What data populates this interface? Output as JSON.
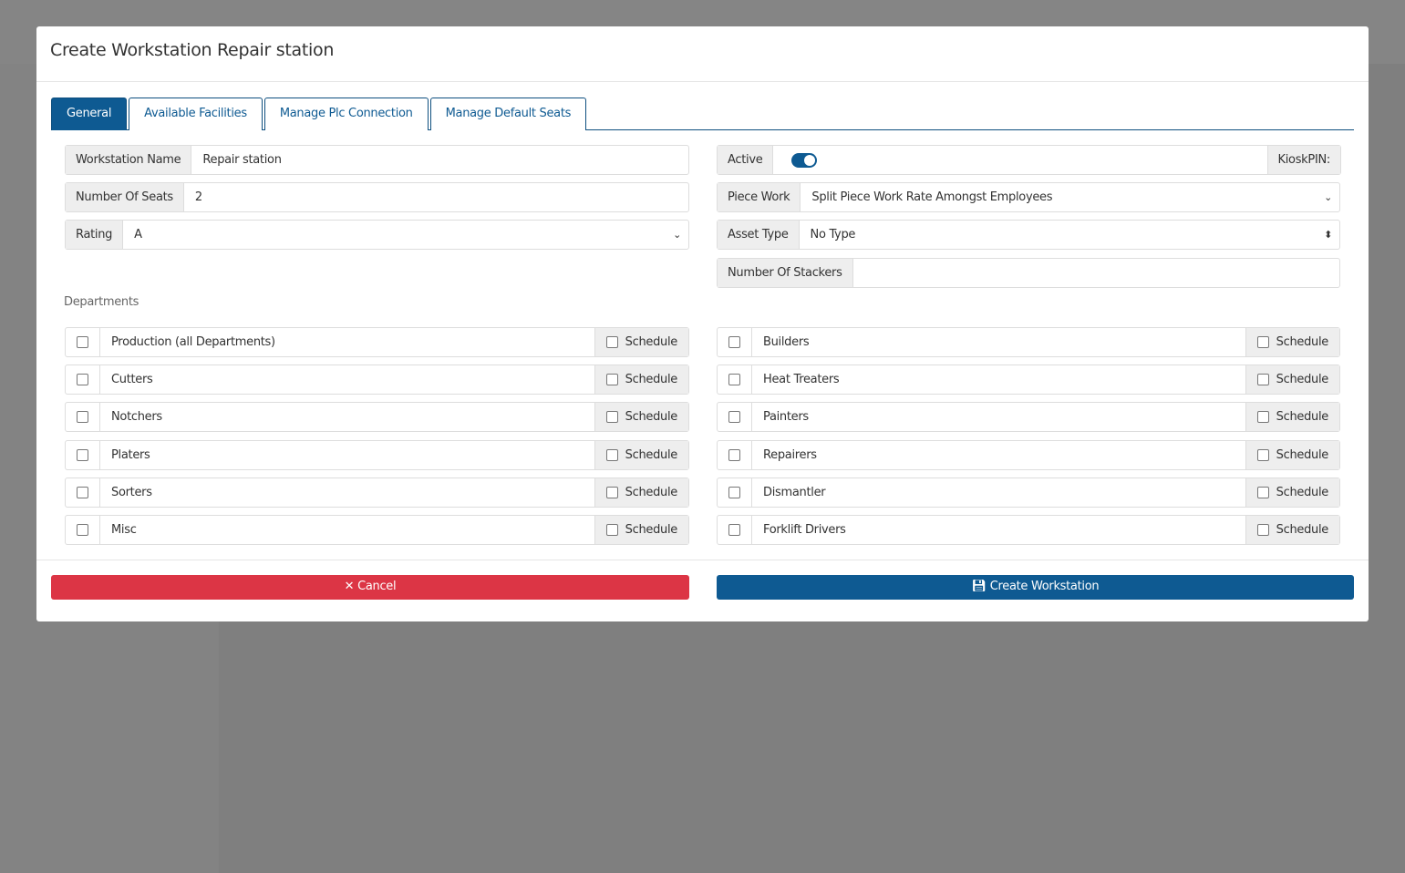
{
  "modal": {
    "title": "Create Workstation Repair station"
  },
  "tabs": [
    "General",
    "Available Facilities",
    "Manage Plc Connection",
    "Manage Default Seats"
  ],
  "form": {
    "workstation_name_label": "Workstation Name",
    "workstation_name": "Repair station",
    "seats_label": "Number Of Seats",
    "seats": "2",
    "rating_label": "Rating",
    "rating": "A",
    "active_label": "Active",
    "active": true,
    "kiosk_label": "KioskPIN:",
    "piece_work_label": "Piece Work",
    "piece_work": "Split Piece Work Rate Amongst Employees",
    "asset_type_label": "Asset Type",
    "asset_type": "No Type",
    "stackers_label": "Number Of Stackers",
    "stackers": ""
  },
  "departments": {
    "label": "Departments",
    "schedule_label": "Schedule",
    "left": [
      "Production (all Departments)",
      "Cutters",
      "Notchers",
      "Platers",
      "Sorters",
      "Misc"
    ],
    "right": [
      "Builders",
      "Heat Treaters",
      "Painters",
      "Repairers",
      "Dismantler",
      "Forklift Drivers"
    ]
  },
  "footer": {
    "cancel": "✕ Cancel",
    "create": "Create Workstation"
  },
  "colors": {
    "primary": "#0e5a92",
    "danger": "#dc3545"
  }
}
